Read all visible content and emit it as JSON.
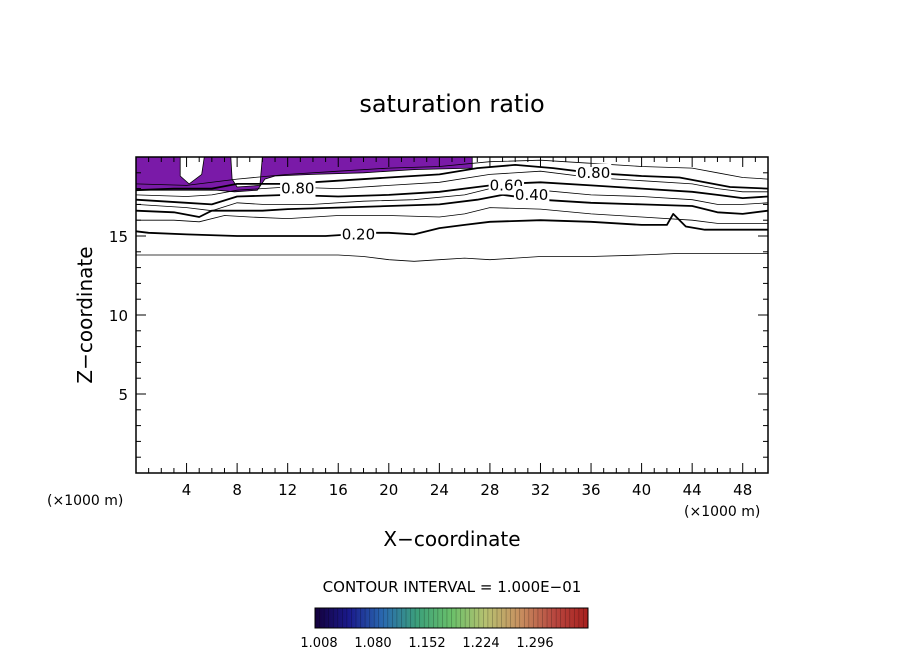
{
  "chart_data": {
    "type": "contour",
    "title": "saturation ratio",
    "xlabel": "X−coordinate",
    "ylabel": "Z−coordinate",
    "x_unit": "(×1000 m)",
    "y_unit": "(×1000 m)",
    "xlim": [
      0,
      50
    ],
    "ylim": [
      0,
      20
    ],
    "x_ticks": [
      4,
      8,
      12,
      16,
      20,
      24,
      28,
      32,
      36,
      40,
      44,
      48
    ],
    "x_tick_labels": [
      "4",
      "8",
      "12",
      "16",
      "20",
      "24",
      "28",
      "32",
      "36",
      "40",
      "44",
      "48"
    ],
    "y_ticks": [
      5,
      10,
      15
    ],
    "y_tick_labels": [
      "5",
      "10",
      "15"
    ],
    "contour_interval_text": "CONTOUR INTERVAL = 1.000E−01",
    "contour_labels": [
      {
        "text": "0.80",
        "x": 12.8,
        "y": 18.0
      },
      {
        "text": "0.60",
        "x": 29.3,
        "y": 18.2
      },
      {
        "text": "0.40",
        "x": 31.3,
        "y": 17.6
      },
      {
        "text": "0.80",
        "x": 36.2,
        "y": 19.0
      },
      {
        "text": "0.20",
        "x": 17.6,
        "y": 15.1
      }
    ],
    "contours": [
      {
        "level": 0.1,
        "bold": false,
        "points": [
          [
            0,
            13.8
          ],
          [
            4,
            13.8
          ],
          [
            8,
            13.8
          ],
          [
            12,
            13.8
          ],
          [
            16,
            13.8
          ],
          [
            18,
            13.7
          ],
          [
            20,
            13.5
          ],
          [
            22,
            13.4
          ],
          [
            24,
            13.5
          ],
          [
            26,
            13.6
          ],
          [
            28,
            13.5
          ],
          [
            30,
            13.6
          ],
          [
            32,
            13.7
          ],
          [
            36,
            13.7
          ],
          [
            40,
            13.8
          ],
          [
            43,
            13.9
          ],
          [
            46,
            13.9
          ],
          [
            50,
            13.9
          ]
        ]
      },
      {
        "level": 0.2,
        "bold": true,
        "points": [
          [
            0,
            15.3
          ],
          [
            1,
            15.2
          ],
          [
            4,
            15.1
          ],
          [
            8,
            15.0
          ],
          [
            12,
            15.0
          ],
          [
            15,
            15.0
          ],
          [
            17,
            15.1
          ],
          [
            19,
            15.2
          ],
          [
            20,
            15.2
          ],
          [
            22,
            15.1
          ],
          [
            24,
            15.5
          ],
          [
            26,
            15.7
          ],
          [
            28,
            15.9
          ],
          [
            32,
            16.0
          ],
          [
            36,
            15.9
          ],
          [
            40,
            15.7
          ],
          [
            42,
            15.7
          ],
          [
            42.5,
            16.4
          ],
          [
            43.5,
            15.6
          ],
          [
            45,
            15.4
          ],
          [
            50,
            15.4
          ]
        ]
      },
      {
        "level": 0.3,
        "bold": false,
        "points": [
          [
            0,
            16.0
          ],
          [
            3,
            16.0
          ],
          [
            5,
            15.9
          ],
          [
            7,
            16.3
          ],
          [
            9,
            16.2
          ],
          [
            12,
            16.1
          ],
          [
            16,
            16.3
          ],
          [
            20,
            16.3
          ],
          [
            24,
            16.2
          ],
          [
            26,
            16.4
          ],
          [
            28,
            16.8
          ],
          [
            32,
            16.7
          ],
          [
            36,
            16.4
          ],
          [
            40,
            16.2
          ],
          [
            44,
            16.0
          ],
          [
            46,
            15.8
          ],
          [
            50,
            15.8
          ]
        ]
      },
      {
        "level": 0.4,
        "bold": true,
        "points": [
          [
            0,
            16.6
          ],
          [
            3,
            16.5
          ],
          [
            5,
            16.2
          ],
          [
            6,
            16.6
          ],
          [
            8,
            16.6
          ],
          [
            10,
            16.6
          ],
          [
            12,
            16.7
          ],
          [
            16,
            16.8
          ],
          [
            20,
            16.9
          ],
          [
            24,
            17.0
          ],
          [
            27,
            17.3
          ],
          [
            29,
            17.6
          ],
          [
            32,
            17.3
          ],
          [
            36,
            17.1
          ],
          [
            40,
            17.0
          ],
          [
            44,
            16.9
          ],
          [
            46,
            16.5
          ],
          [
            48,
            16.4
          ],
          [
            50,
            16.6
          ]
        ]
      },
      {
        "level": 0.5,
        "bold": false,
        "points": [
          [
            0,
            17.0
          ],
          [
            4,
            16.8
          ],
          [
            6,
            16.6
          ],
          [
            8,
            17.1
          ],
          [
            10,
            17.0
          ],
          [
            14,
            17.0
          ],
          [
            18,
            17.2
          ],
          [
            22,
            17.3
          ],
          [
            26,
            17.6
          ],
          [
            28,
            18.0
          ],
          [
            32,
            17.9
          ],
          [
            36,
            17.6
          ],
          [
            40,
            17.5
          ],
          [
            44,
            17.3
          ],
          [
            46,
            17.0
          ],
          [
            48,
            17.0
          ],
          [
            50,
            17.1
          ]
        ]
      },
      {
        "level": 0.6,
        "bold": true,
        "points": [
          [
            0,
            17.3
          ],
          [
            4,
            17.1
          ],
          [
            6,
            17.0
          ],
          [
            8,
            17.5
          ],
          [
            12,
            17.6
          ],
          [
            16,
            17.5
          ],
          [
            20,
            17.6
          ],
          [
            24,
            17.8
          ],
          [
            27,
            18.1
          ],
          [
            29,
            18.3
          ],
          [
            32,
            18.4
          ],
          [
            36,
            18.2
          ],
          [
            40,
            18.0
          ],
          [
            44,
            17.8
          ],
          [
            46,
            17.6
          ],
          [
            48,
            17.4
          ],
          [
            50,
            17.5
          ]
        ]
      },
      {
        "level": 0.7,
        "bold": false,
        "points": [
          [
            0,
            17.6
          ],
          [
            4,
            17.5
          ],
          [
            6,
            17.6
          ],
          [
            8,
            17.9
          ],
          [
            12,
            18.1
          ],
          [
            16,
            18.0
          ],
          [
            20,
            18.2
          ],
          [
            24,
            18.4
          ],
          [
            28,
            18.9
          ],
          [
            32,
            19.1
          ],
          [
            36,
            18.7
          ],
          [
            40,
            18.5
          ],
          [
            44,
            18.3
          ],
          [
            46,
            18.0
          ],
          [
            48,
            17.8
          ],
          [
            50,
            17.8
          ]
        ]
      },
      {
        "level": 0.8,
        "bold": true,
        "points": [
          [
            0,
            17.9
          ],
          [
            3,
            18.0
          ],
          [
            6,
            18.0
          ],
          [
            8,
            18.3
          ],
          [
            12,
            18.3
          ],
          [
            16,
            18.5
          ],
          [
            20,
            18.7
          ],
          [
            24,
            18.9
          ],
          [
            27,
            19.3
          ],
          [
            30,
            19.5
          ],
          [
            33,
            19.3
          ],
          [
            36,
            19.0
          ],
          [
            40,
            18.8
          ],
          [
            43,
            18.7
          ],
          [
            45,
            18.4
          ],
          [
            47,
            18.1
          ],
          [
            50,
            18.0
          ]
        ]
      },
      {
        "level": 0.9,
        "bold": false,
        "points": [
          [
            0,
            18.3
          ],
          [
            4,
            18.2
          ],
          [
            8,
            18.6
          ],
          [
            12,
            18.9
          ],
          [
            16,
            19.1
          ],
          [
            20,
            19.3
          ],
          [
            24,
            19.4
          ],
          [
            28,
            19.7
          ],
          [
            32,
            19.8
          ],
          [
            36,
            19.6
          ],
          [
            40,
            19.4
          ],
          [
            44,
            19.3
          ],
          [
            46,
            19.0
          ],
          [
            48,
            18.7
          ],
          [
            50,
            18.6
          ]
        ]
      }
    ],
    "filled_regions": [
      {
        "level": 1.0,
        "color": "#7a1aa8",
        "points": [
          [
            0,
            20
          ],
          [
            3.5,
            20
          ],
          [
            3.5,
            18.8
          ],
          [
            4.2,
            18.3
          ],
          [
            5.2,
            18.9
          ],
          [
            5.4,
            20
          ],
          [
            7.5,
            20
          ],
          [
            7.6,
            18.6
          ],
          [
            8.0,
            18.1
          ],
          [
            9.8,
            18.2
          ],
          [
            10.0,
            20
          ],
          [
            26.6,
            20
          ],
          [
            26.6,
            19.3
          ],
          [
            22,
            19.2
          ],
          [
            18,
            19.0
          ],
          [
            14,
            18.9
          ],
          [
            11,
            18.8
          ],
          [
            10.2,
            18.6
          ],
          [
            9.6,
            17.9
          ],
          [
            7.8,
            17.8
          ],
          [
            6.4,
            17.9
          ],
          [
            5.0,
            17.9
          ],
          [
            3.0,
            17.9
          ],
          [
            0,
            17.9
          ]
        ]
      }
    ],
    "colorbar": {
      "ticks": [
        "1.008",
        "1.080",
        "1.152",
        "1.224",
        "1.296"
      ],
      "stops": [
        "#14003c",
        "#1a1a8c",
        "#2a6ab0",
        "#3ca07a",
        "#6ac06a",
        "#b6c070",
        "#c89060",
        "#b84840",
        "#a8201e"
      ]
    }
  }
}
